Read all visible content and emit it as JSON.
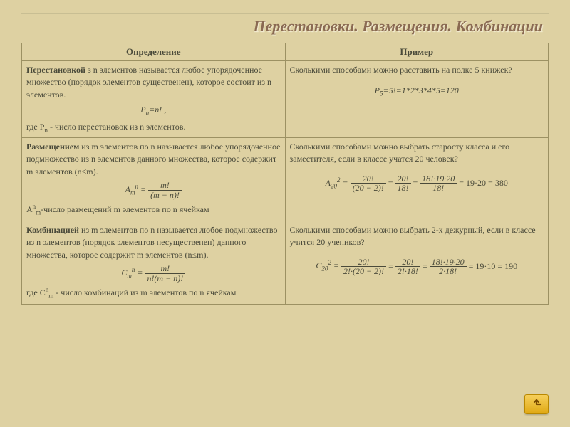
{
  "title": "Перестановки. Размещения. Комбинации",
  "headers": {
    "def": "Определение",
    "ex": "Пример"
  },
  "rows": [
    {
      "term": "Перестановкой",
      "def_rest": " з n элементов называется любое упорядоченное множество (порядок элементов существенен), которое состоит из n элементов.",
      "formula_html": "P<span class='sub'>n</span>=n! ,",
      "note": "где P<span class='sub'>n</span> - число перестановок из n элементов.",
      "ex_q": "Сколькими способами можно расставить на полке 5 книжек?",
      "ex_formula": "P<span class='sub'>5</span>=5!=1*2*3*4*5=120"
    },
    {
      "term": "Размещением",
      "def_rest": " из m элементов по n называется любое упорядоченное подмножество из n элементов данного множества, которое содержит m  элементов (n≤m).",
      "formula_frac": {
        "lhs": "A<span class='sub'>m</span><span class='sup'>n</span> =",
        "num": "m!",
        "den": "(m − n)!"
      },
      "note": "A<span class='sup'>n</span><span class='sub'>m</span>-число размещений m элементов по n ячейкам",
      "ex_q": "Сколькими способами можно выбрать старосту класса и его заместителя, если в классе учатся 20 человек?",
      "ex_chain": {
        "lhs": "A<span class='sub'>20</span><span class='sup'>2</span> =",
        "f1": {
          "num": "20!",
          "den": "(20 − 2)!"
        },
        "f2": {
          "num": "20!",
          "den": "18!"
        },
        "f3": {
          "num": "18!·19·20",
          "den": "18!"
        },
        "res": "= 19·20 = 380"
      }
    },
    {
      "term": "Комбинацией",
      "def_rest": " из m элементов по n называется любое подмножество из n элементов (порядок элементов несущественен) данного множества, которое содержит m  элементов (n≤m).",
      "formula_frac": {
        "lhs": "C<span class='sub'>m</span><span class='sup'>n</span> =",
        "num": "m!",
        "den": "n!(m − n)!"
      },
      "note": "где C<span class='sup'>n</span><span class='sub'>m</span> - число комбинаций из m элементов по n ячейкам",
      "ex_q": "Сколькими способами можно выбрать 2-х дежурный, если в классе учится 20 учеников?",
      "ex_chain": {
        "lhs": "C<span class='sub'>20</span><span class='sup'>2</span> =",
        "f1": {
          "num": "20!",
          "den": "2!·(20 − 2)!"
        },
        "f2": {
          "num": "20!",
          "den": "2!·18!"
        },
        "f3": {
          "num": "18!·19·20",
          "den": "2·18!"
        },
        "res": "= 19·10 = 190"
      }
    }
  ],
  "colors": {
    "background": "#ded1a2",
    "title": "#8a6a52",
    "border": "#9c9163",
    "text": "#4a4a3a",
    "btn_top": "#f6cf5b",
    "btn_bot": "#e0a914",
    "arrow": "#7a4a00"
  }
}
